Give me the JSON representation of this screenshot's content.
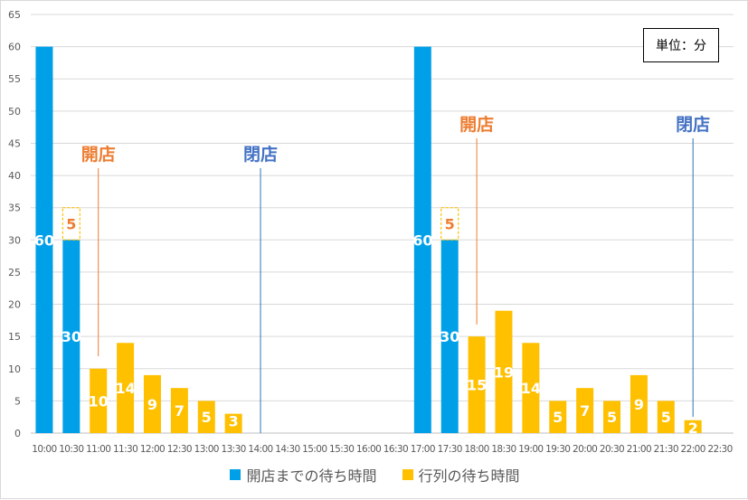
{
  "chart_data": {
    "type": "bar",
    "stacked": true,
    "title": "",
    "categories": [
      "10:00",
      "10:30",
      "11:00",
      "11:30",
      "12:00",
      "12:30",
      "13:00",
      "13:30",
      "14:00",
      "14:30",
      "15:00",
      "15:30",
      "16:00",
      "16:30",
      "17:00",
      "17:30",
      "18:00",
      "18:30",
      "19:00",
      "19:30",
      "20:00",
      "20:30",
      "21:00",
      "21:30",
      "22:00",
      "22:30"
    ],
    "series": [
      {
        "name": "開店までの待ち時間",
        "color": "#00a0e9",
        "values": [
          60,
          30,
          0,
          0,
          0,
          0,
          0,
          0,
          0,
          0,
          0,
          0,
          0,
          0,
          60,
          30,
          0,
          0,
          0,
          0,
          0,
          0,
          0,
          0,
          0,
          0
        ]
      },
      {
        "name": "行列の待ち時間",
        "color": "#ffc000",
        "values": [
          0,
          5,
          10,
          14,
          9,
          7,
          5,
          3,
          0,
          0,
          0,
          0,
          0,
          0,
          0,
          5,
          15,
          19,
          14,
          5,
          7,
          5,
          9,
          5,
          2,
          0
        ]
      }
    ],
    "ylim": [
      0,
      65
    ],
    "yticks": [
      0,
      5,
      10,
      15,
      20,
      25,
      30,
      35,
      40,
      45,
      50,
      55,
      60,
      65
    ],
    "unit_label": "単位：分",
    "grid": true,
    "legend_position": "bottom",
    "annotations": [
      {
        "text": "開店",
        "category": "11:00",
        "color": "#ed7d31"
      },
      {
        "text": "閉店",
        "category": "14:00",
        "color": "#4472c4"
      },
      {
        "text": "開店",
        "category": "18:00",
        "color": "#ed7d31"
      },
      {
        "text": "閉店",
        "category": "22:00",
        "color": "#4472c4"
      }
    ]
  }
}
